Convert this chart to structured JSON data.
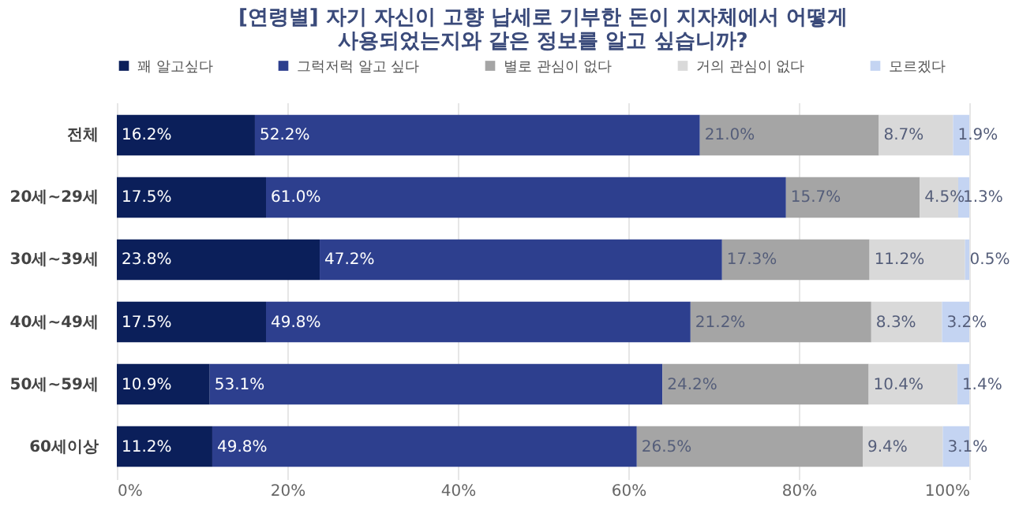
{
  "chart_data": {
    "type": "bar",
    "orientation": "horizontal",
    "stacked": true,
    "title": [
      "[연령별] 자기 자신이 고향 납세로 기부한 돈이 지자체에서 어떻게",
      "사용되었는지와 같은 정보를 알고 싶습니까?"
    ],
    "categories": [
      "전체",
      "20세~29세",
      "30세~39세",
      "40세~49세",
      "50세~59세",
      "60세이상"
    ],
    "series": [
      {
        "name": "꽤 알고싶다",
        "color": "#0b1f5a",
        "values": [
          16.2,
          17.5,
          23.8,
          17.5,
          10.9,
          11.2
        ],
        "value_labels": [
          "16.2%",
          "17.5%",
          "23.8%",
          "17.5%",
          "10.9%",
          "11.2%"
        ]
      },
      {
        "name": "그럭저럭 알고 싶다",
        "color": "#2d3f8e",
        "values": [
          52.2,
          61.0,
          47.2,
          49.8,
          53.1,
          49.8
        ],
        "value_labels": [
          "52.2%",
          "61.0%",
          "47.2%",
          "49.8%",
          "53.1%",
          "49.8%"
        ]
      },
      {
        "name": "별로 관심이 없다",
        "color": "#a5a5a5",
        "values": [
          21.0,
          15.7,
          17.3,
          21.2,
          24.2,
          26.5
        ],
        "value_labels": [
          "21.0%",
          "15.7%",
          "17.3%",
          "21.2%",
          "24.2%",
          "26.5%"
        ]
      },
      {
        "name": "거의 관심이 없다",
        "color": "#d9d9d9",
        "values": [
          8.7,
          4.5,
          11.2,
          8.3,
          10.4,
          9.4
        ],
        "value_labels": [
          "8.7%",
          "4.5%",
          "11.2%",
          "8.3%",
          "10.4%",
          "9.4%"
        ]
      },
      {
        "name": "모르겠다",
        "color": "#c4d4f2",
        "values": [
          1.9,
          1.3,
          0.5,
          3.2,
          1.4,
          3.1
        ],
        "value_labels": [
          "1.9%",
          "1.3%",
          "0.5%",
          "3.2%",
          "1.4%",
          "3.1%"
        ]
      }
    ],
    "xlim": [
      0,
      100
    ],
    "xticks": [
      {
        "value": 0,
        "label": "0%"
      },
      {
        "value": 20,
        "label": "20%"
      },
      {
        "value": 40,
        "label": "40%"
      },
      {
        "value": 60,
        "label": "60%"
      },
      {
        "value": 80,
        "label": "80%"
      },
      {
        "value": 100,
        "label": "100%"
      }
    ],
    "grid": "x",
    "legend": "top"
  }
}
